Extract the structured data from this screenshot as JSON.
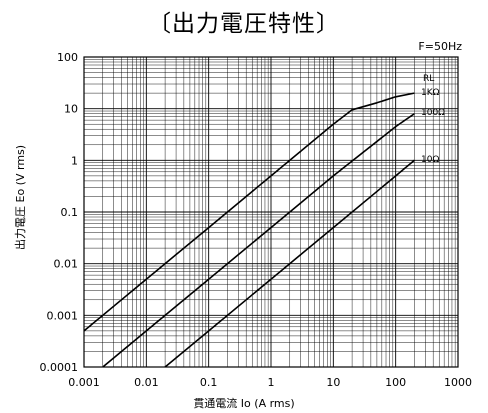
{
  "chart_data": {
    "type": "line",
    "title": "〔出力電圧特性〕",
    "annotation": "F=50Hz",
    "xlabel": "貫通電流 Io (A rms)",
    "ylabel": "出力電圧 Eo (V rms)",
    "x_scale": "log",
    "y_scale": "log",
    "xlim": [
      0.001,
      1000
    ],
    "ylim": [
      0.0001,
      100
    ],
    "grid": true,
    "x_ticks": [
      "0.001",
      "0.01",
      "0.1",
      "1",
      "10",
      "100",
      "1000"
    ],
    "y_ticks": [
      "100",
      "10",
      "1",
      "0.1",
      "0.01",
      "0.001",
      "0.0001"
    ],
    "legend_title": "RL",
    "series": [
      {
        "name": "1KΩ",
        "x": [
          0.001,
          0.01,
          0.1,
          1,
          10,
          20,
          50,
          100,
          200
        ],
        "y": [
          0.0005,
          0.005,
          0.05,
          0.5,
          5,
          9.5,
          13,
          17,
          20
        ]
      },
      {
        "name": "100Ω",
        "x": [
          0.002,
          0.01,
          0.1,
          1,
          10,
          100,
          200
        ],
        "y": [
          0.0001,
          0.0005,
          0.005,
          0.05,
          0.5,
          4.5,
          8
        ]
      },
      {
        "name": "10Ω",
        "x": [
          0.02,
          0.1,
          1,
          10,
          100,
          200
        ],
        "y": [
          0.0001,
          0.0005,
          0.005,
          0.05,
          0.5,
          1
        ]
      }
    ]
  }
}
